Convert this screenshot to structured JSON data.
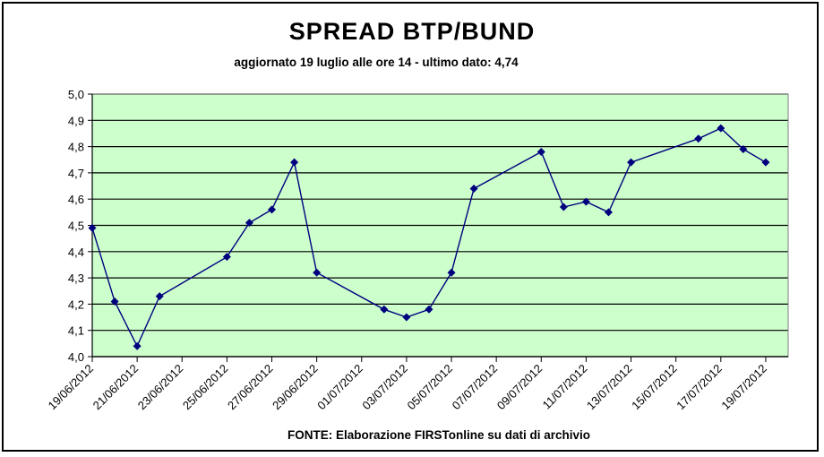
{
  "chart_data": {
    "type": "line",
    "title": "SPREAD BTP/BUND",
    "subtitle": "aggiornato 19 luglio alle ore 14 - ultimo dato: 4,74",
    "source": "FONTE: Elaborazione FIRSTonline su dati di archivio",
    "xlabel": "",
    "ylabel": "",
    "x_range": [
      "19/06/2012",
      "20/07/2012"
    ],
    "x_ticks": [
      "19/06/2012",
      "21/06/2012",
      "23/06/2012",
      "25/06/2012",
      "27/06/2012",
      "29/06/2012",
      "01/07/2012",
      "03/07/2012",
      "05/07/2012",
      "07/07/2012",
      "09/07/2012",
      "11/07/2012",
      "13/07/2012",
      "15/07/2012",
      "17/07/2012",
      "19/07/2012"
    ],
    "ylim": [
      4.0,
      5.0
    ],
    "y_ticks": [
      "4,0",
      "4,1",
      "4,2",
      "4,3",
      "4,4",
      "4,5",
      "4,6",
      "4,7",
      "4,8",
      "4,9",
      "5,0"
    ],
    "grid": true,
    "plot_background": "#ccffcc",
    "series_color": "#00007f",
    "series": [
      {
        "points": [
          {
            "x": "2012-06-19",
            "y": 4.49
          },
          {
            "x": "2012-06-20",
            "y": 4.21
          },
          {
            "x": "2012-06-21",
            "y": 4.04
          },
          {
            "x": "2012-06-22",
            "y": 4.23
          },
          {
            "x": "2012-06-25",
            "y": 4.38
          },
          {
            "x": "2012-06-26",
            "y": 4.51
          },
          {
            "x": "2012-06-27",
            "y": 4.56
          },
          {
            "x": "2012-06-28",
            "y": 4.74
          },
          {
            "x": "2012-06-29",
            "y": 4.32
          },
          {
            "x": "2012-07-02",
            "y": 4.18
          },
          {
            "x": "2012-07-03",
            "y": 4.15
          },
          {
            "x": "2012-07-04",
            "y": 4.18
          },
          {
            "x": "2012-07-05",
            "y": 4.32
          },
          {
            "x": "2012-07-06",
            "y": 4.64
          },
          {
            "x": "2012-07-09",
            "y": 4.78
          },
          {
            "x": "2012-07-10",
            "y": 4.57
          },
          {
            "x": "2012-07-11",
            "y": 4.59
          },
          {
            "x": "2012-07-12",
            "y": 4.55
          },
          {
            "x": "2012-07-13",
            "y": 4.74
          },
          {
            "x": "2012-07-16",
            "y": 4.83
          },
          {
            "x": "2012-07-17",
            "y": 4.87
          },
          {
            "x": "2012-07-18",
            "y": 4.79
          },
          {
            "x": "2012-07-19",
            "y": 4.74
          }
        ]
      }
    ]
  }
}
